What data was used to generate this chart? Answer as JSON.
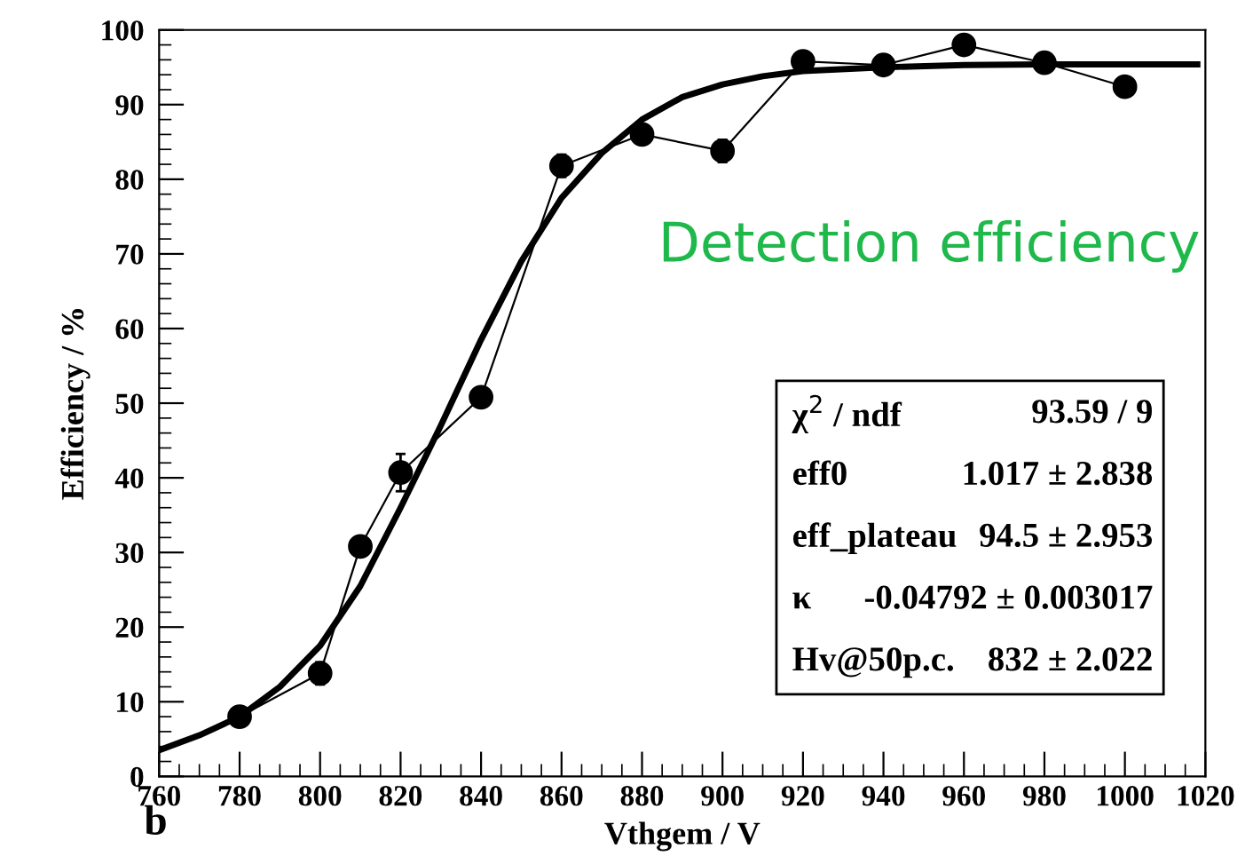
{
  "chart_data": {
    "type": "line",
    "xlabel": "Vthgem / V",
    "ylabel": "Efficiency / %",
    "xlim": [
      760,
      1020
    ],
    "xticks": [
      760,
      780,
      800,
      820,
      840,
      860,
      880,
      900,
      920,
      940,
      960,
      980,
      1000,
      1020
    ],
    "ylim": [
      0,
      100
    ],
    "yticks": [
      0,
      10,
      20,
      30,
      40,
      50,
      60,
      70,
      80,
      90,
      100
    ],
    "grid": false,
    "legend": false,
    "series": [
      {
        "color": "#000000",
        "marker": "circle",
        "line_style": "solid",
        "x": [
          780,
          800,
          810,
          820,
          840,
          860,
          880,
          900,
          920,
          940,
          960,
          980,
          1000
        ],
        "values": [
          8,
          13.8,
          30.8,
          40.7,
          50.8,
          81.8,
          86,
          83.8,
          95.8,
          95.3,
          98,
          95.6,
          92.4
        ],
        "errors": [
          1,
          1.5,
          1,
          2.5,
          1,
          1.5,
          1,
          1.5,
          1,
          1,
          1,
          1,
          1
        ]
      },
      {
        "color": "#000000",
        "marker": "none",
        "line_style": "solid",
        "x": [
          760,
          770,
          780,
          790,
          800,
          810,
          820,
          830,
          840,
          850,
          860,
          870,
          880,
          890,
          900,
          910,
          920,
          940,
          960,
          980,
          1000,
          1018
        ],
        "values": [
          3.5,
          5.5,
          8,
          12,
          17.5,
          25.5,
          36,
          47,
          58.5,
          69,
          77.5,
          83.5,
          88,
          91,
          92.7,
          93.8,
          94.5,
          95,
          95.3,
          95.4,
          95.4,
          95.4
        ]
      }
    ],
    "annotations": [
      "Detection efficiency",
      "χ$^{2}$ / ndf",
      "93.59 / 9",
      "eff0",
      "1.017 ± 2.838",
      "eff_plateau",
      "94.5 ± 2.953",
      "κ",
      "-0.04792 ± 0.003017",
      "Hv@50p.c.",
      "832 ± 2.022",
      "b"
    ]
  }
}
